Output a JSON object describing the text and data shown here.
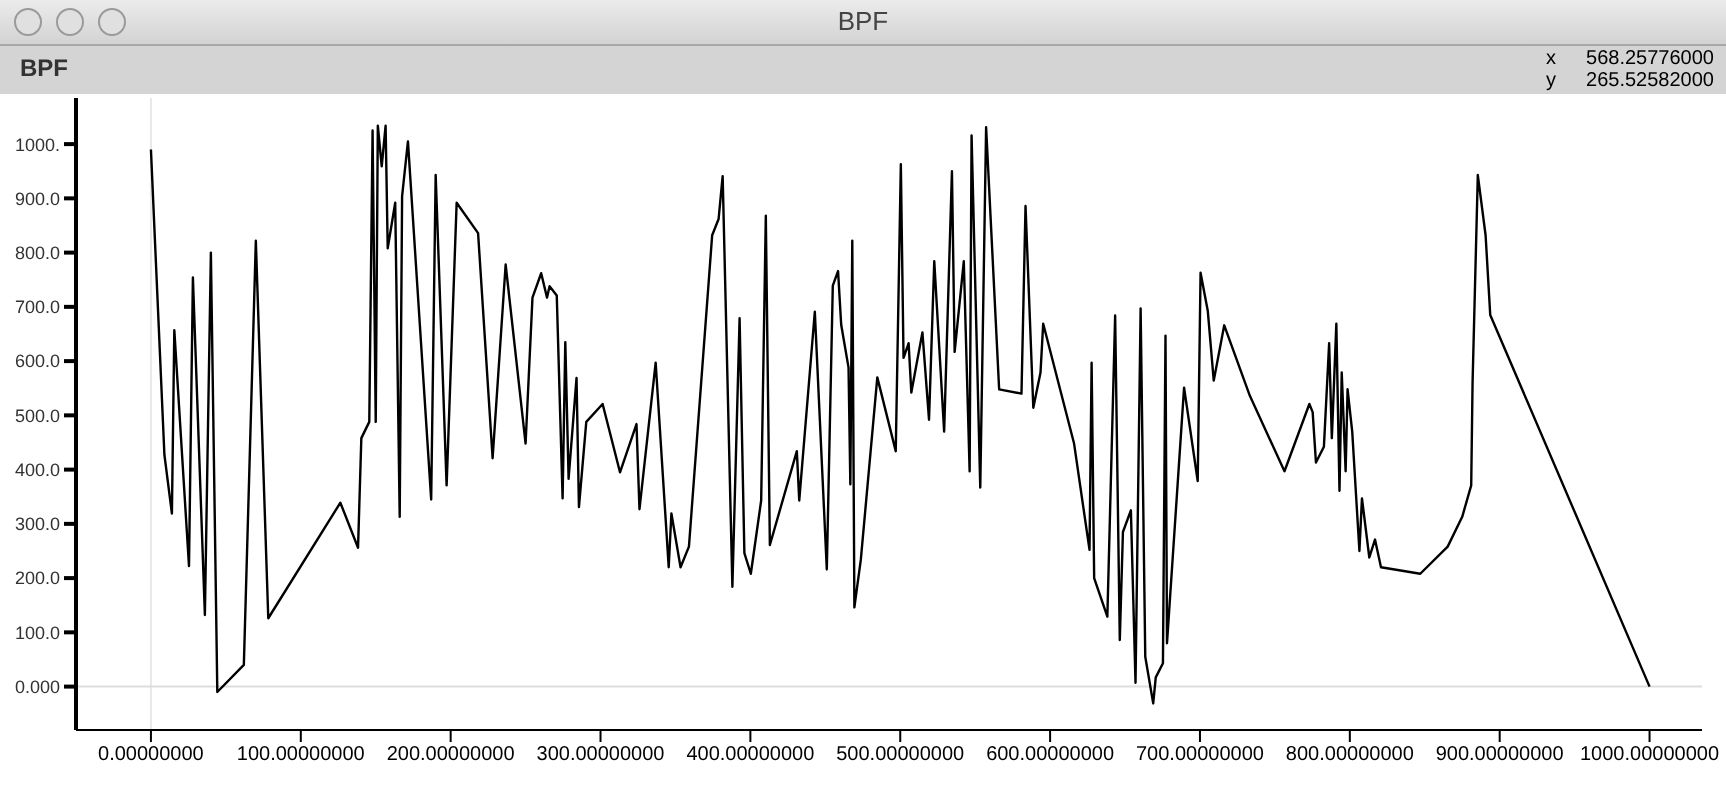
{
  "chart_data": {
    "type": "line",
    "title": "BPF",
    "subtitle": "BPF",
    "annotations": [
      "x",
      "568.25776000",
      "y",
      "265.52582000"
    ],
    "x": [
      0,
      9,
      14,
      15.6,
      25.4,
      28,
      36,
      40,
      44.3,
      62,
      70,
      78.3,
      126.4,
      138.2,
      140.4,
      145.7,
      147.9,
      150,
      151.4,
      154,
      156.6,
      158,
      163,
      166,
      167.6,
      171.5,
      187,
      190,
      197.3,
      204,
      218.3,
      228,
      236.7,
      250,
      254.6,
      260.4,
      264.3,
      266,
      270.8,
      274.7,
      276.5,
      278.7,
      284,
      285.6,
      290.5,
      301.4,
      313,
      324,
      326,
      336.8,
      345.5,
      347.3,
      353.4,
      359,
      374.5,
      378.8,
      381.5,
      388,
      392.8,
      396,
      400.3,
      407.2,
      410.3,
      413,
      431,
      432.6,
      443,
      451,
      455,
      458.5,
      460.6,
      465.5,
      466.7,
      468,
      469.4,
      473.7,
      484.7,
      497,
      500.4,
      502.2,
      505.6,
      507.4,
      514.8,
      519.2,
      522.7,
      529.3,
      534.5,
      536.3,
      542.4,
      546.3,
      547.6,
      553.4,
      557.3,
      566,
      580.9,
      583.6,
      588.8,
      593.6,
      595.4,
      616,
      626.3,
      627.7,
      629.4,
      638.2,
      643.4,
      646.5,
      648.6,
      653.9,
      657,
      660.4,
      663.5,
      668.8,
      670.5,
      675.3,
      677,
      678,
      689.4,
      698.5,
      700.4,
      705.2,
      709.2,
      716.2,
      733.3,
      756.4,
      773,
      775.2,
      777.4,
      782.7,
      786.2,
      788,
      791,
      793.1,
      794.6,
      797.2,
      798.5,
      801.6,
      806.4,
      808.1,
      813,
      816.8,
      820.8,
      847,
      865.3,
      875,
      881,
      881.9,
      885.4,
      890.6,
      893.7,
      1000
    ],
    "series": [
      {
        "color": "#000000",
        "values": [
          990,
          427,
          319,
          657,
          222,
          754,
          132,
          800,
          -10,
          40,
          822,
          126,
          339,
          256,
          458,
          488,
          1025,
          488,
          1034,
          959,
          1034,
          808,
          892,
          313,
          904,
          1005,
          345,
          943,
          371,
          892,
          836,
          421,
          778,
          448,
          717,
          762,
          717,
          738,
          721,
          347,
          635,
          383,
          569,
          331,
          488,
          521,
          395,
          484,
          327,
          597,
          220,
          319,
          220,
          258,
          832,
          862,
          941,
          184,
          679,
          246,
          208,
          343,
          868,
          261,
          434,
          343,
          691,
          216,
          739,
          766,
          667,
          588,
          373,
          822,
          146,
          234,
          570,
          434,
          963,
          606,
          633,
          542,
          653,
          492,
          784,
          470,
          950,
          617,
          784,
          397,
          1016,
          367,
          1031,
          548,
          540,
          886,
          514,
          579,
          669,
          448,
          252,
          597,
          200,
          129,
          684,
          86,
          285,
          325,
          7,
          697,
          55,
          -31,
          17,
          43,
          647,
          80,
          551,
          379,
          763,
          693,
          564,
          666,
          536,
          397,
          521,
          506,
          413,
          442,
          633,
          458,
          669,
          361,
          579,
          397,
          548,
          470,
          250,
          347,
          238,
          271,
          220,
          208,
          258,
          313,
          371,
          560,
          943,
          832,
          685,
          0
        ]
      }
    ],
    "xlim": [
      -50,
      1035
    ],
    "ylim": [
      -80,
      1085
    ],
    "xticks": [
      {
        "value": 0,
        "label": "0.00000000"
      },
      {
        "value": 100,
        "label": "100.00000000"
      },
      {
        "value": 200,
        "label": "200.00000000"
      },
      {
        "value": 300,
        "label": "300.00000000"
      },
      {
        "value": 400,
        "label": "400.00000000"
      },
      {
        "value": 500,
        "label": "500.00000000"
      },
      {
        "value": 600,
        "label": "600.00000000"
      },
      {
        "value": 700,
        "label": "700.00000000"
      },
      {
        "value": 800,
        "label": "800.00000000"
      },
      {
        "value": 900,
        "label": "900.00000000"
      },
      {
        "value": 1000,
        "label": "1000.00000000"
      }
    ],
    "yticks": [
      {
        "value": 0,
        "label": "0.000"
      },
      {
        "value": 100,
        "label": "100.0"
      },
      {
        "value": 200,
        "label": "200.0"
      },
      {
        "value": 300,
        "label": "300.0"
      },
      {
        "value": 400,
        "label": "400.0"
      },
      {
        "value": 500,
        "label": "500.0"
      },
      {
        "value": 600,
        "label": "600.0"
      },
      {
        "value": 700,
        "label": "700.0"
      },
      {
        "value": 800,
        "label": "800.0"
      },
      {
        "value": 900,
        "label": "900.0"
      },
      {
        "value": 1000,
        "label": "1000."
      }
    ],
    "ref_lines": [
      {
        "axis": "x",
        "value": 0,
        "color": "#e8e8e8"
      },
      {
        "axis": "y",
        "value": 0,
        "color": "#dddddd"
      }
    ],
    "grid": false,
    "marker": "none",
    "line_style": "solid"
  }
}
